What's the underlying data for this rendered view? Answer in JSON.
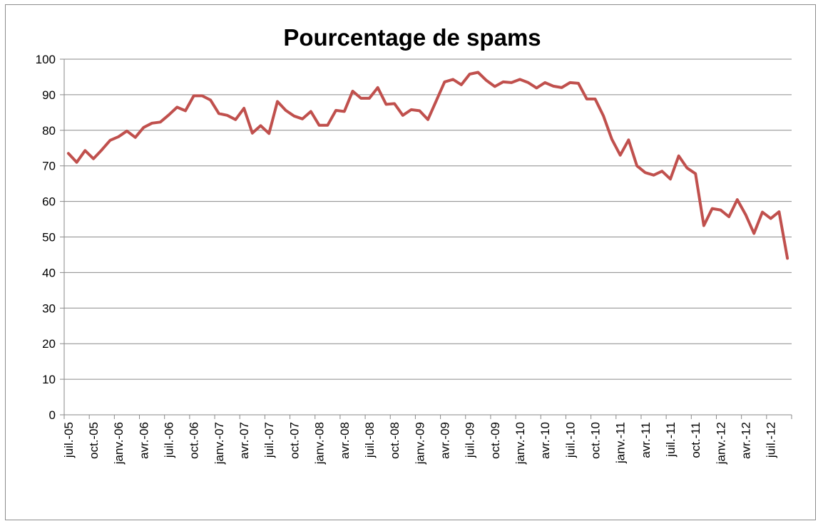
{
  "chart_data": {
    "type": "line",
    "title": "Pourcentage de spams",
    "xlabel": "",
    "ylabel": "",
    "ylim": [
      0,
      100
    ],
    "yticks": [
      0,
      10,
      20,
      30,
      40,
      50,
      60,
      70,
      80,
      90,
      100
    ],
    "grid": true,
    "legend": "none",
    "line_color": "#c0504d",
    "x_tick_labels": [
      "juil.-05",
      "oct.-05",
      "janv.-06",
      "avr.-06",
      "juil.-06",
      "oct.-06",
      "janv.-07",
      "avr.-07",
      "juil.-07",
      "oct.-07",
      "janv.-08",
      "avr.-08",
      "juil.-08",
      "oct.-08",
      "janv.-09",
      "avr.-09",
      "juil.-09",
      "oct.-09",
      "janv.-10",
      "avr.-10",
      "juil.-10",
      "oct.-10",
      "janv.-11",
      "avr.-11",
      "juil.-11",
      "oct.-11",
      "janv.-12",
      "avr.-12",
      "juil.-12"
    ],
    "tick_every": 3,
    "series": [
      {
        "values": [
          73.5,
          71,
          74.3,
          72,
          74.5,
          77.2,
          78.2,
          79.8,
          78,
          80.8,
          82,
          82.3,
          84.3,
          86.5,
          85.5,
          89.7,
          89.7,
          88.5,
          84.7,
          84.2,
          83,
          86.2,
          79.2,
          81.3,
          79.1,
          88.1,
          85.6,
          84,
          83.2,
          85.3,
          81.4,
          81.4,
          85.6,
          85.3,
          91,
          89,
          89,
          92,
          87.3,
          87.5,
          84.2,
          85.8,
          85.5,
          83,
          88.3,
          93.6,
          94.3,
          92.8,
          95.8,
          96.3,
          94,
          92.3,
          93.6,
          93.4,
          94.3,
          93.4,
          91.9,
          93.4,
          92.4,
          92,
          93.4,
          93.2,
          88.8,
          88.8,
          84,
          77.5,
          73,
          77.3,
          70,
          68.1,
          67.4,
          68.5,
          66.3,
          72.8,
          69.4,
          67.8,
          53.2,
          58,
          57.6,
          55.7,
          60.5,
          56.3,
          51,
          57,
          55.2,
          57.1,
          44
        ]
      }
    ]
  }
}
